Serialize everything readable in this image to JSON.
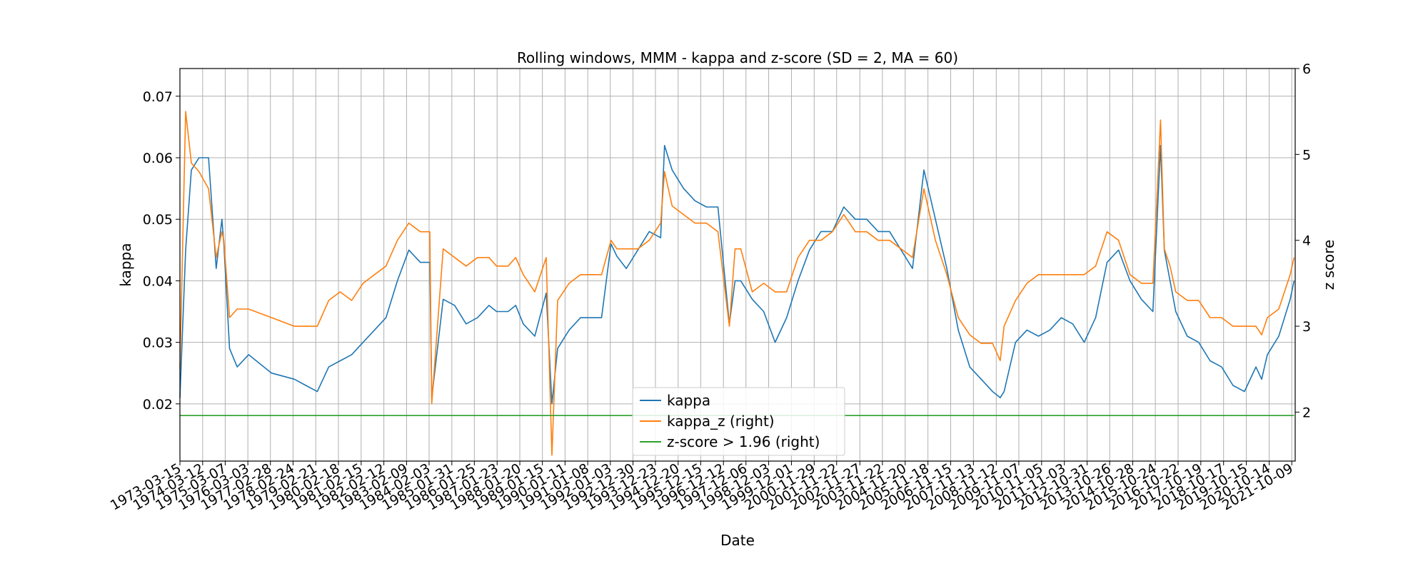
{
  "chart_data": {
    "type": "line",
    "title": "Rolling windows, MMM - kappa and z-score (SD = 2, MA = 60)",
    "xlabel": "Date",
    "ylabel": "kappa",
    "ylabel_right": "z score",
    "ylim": [
      0.0107,
      0.0745
    ],
    "ylim_right": [
      1.43,
      6.0
    ],
    "y_ticks": [
      "0.02",
      "0.03",
      "0.04",
      "0.05",
      "0.06",
      "0.07"
    ],
    "y_ticks_right": [
      "2",
      "3",
      "4",
      "5",
      "6"
    ],
    "x_ticks": [
      "1973-03-15",
      "1974-03-12",
      "1975-03-07",
      "1976-03-03",
      "1977-02-28",
      "1978-02-24",
      "1979-02-21",
      "1980-02-18",
      "1981-02-15",
      "1982-02-12",
      "1983-02-09",
      "1984-02-03",
      "1985-01-31",
      "1986-01-25",
      "1987-01-23",
      "1988-01-20",
      "1989-01-15",
      "1990-01-11",
      "1991-01-08",
      "1992-01-03",
      "1992-12-30",
      "1993-12-23",
      "1994-12-20",
      "1995-12-15",
      "1996-12-12",
      "1997-12-06",
      "1998-12-03",
      "1999-12-01",
      "2000-11-29",
      "2001-11-22",
      "2002-11-27",
      "2003-11-22",
      "2004-11-20",
      "2005-11-18",
      "2006-11-15",
      "2007-11-13",
      "2008-11-12",
      "2009-11-07",
      "2010-11-05",
      "2011-11-03",
      "2012-10-31",
      "2013-10-26",
      "2014-10-28",
      "2015-10-24",
      "2016-10-22",
      "2017-10-19",
      "2018-10-17",
      "2019-10-15",
      "2020-10-14",
      "2021-10-09"
    ],
    "grid": true,
    "legend_position": "lower-center",
    "series": [
      {
        "name": "kappa",
        "axis": "left",
        "color": "#1f77b4",
        "x": [
          "1973-03-15",
          "1973-06",
          "1973-09",
          "1974-01",
          "1974-06",
          "1974-10",
          "1975-01",
          "1975-02",
          "1975-05",
          "1975-09",
          "1976-03",
          "1977-03",
          "1978-03",
          "1978-09",
          "1979-03",
          "1979-09",
          "1980-03",
          "1980-09",
          "1981-03",
          "1981-09",
          "1982-03",
          "1982-09",
          "1983-03",
          "1983-09",
          "1984-02",
          "1984-03",
          "1984-09",
          "1985-03",
          "1985-09",
          "1986-03",
          "1986-09",
          "1987-01",
          "1987-07",
          "1987-11",
          "1988-03",
          "1988-09",
          "1989-03",
          "1989-06",
          "1989-09",
          "1990-03",
          "1990-09",
          "1991-03",
          "1991-08",
          "1992-01",
          "1992-04",
          "1992-09",
          "1993-03",
          "1993-09",
          "1994-03",
          "1994-05",
          "1994-09",
          "1995-03",
          "1995-09",
          "1996-03",
          "1996-09",
          "1997-03",
          "1997-06",
          "1997-09",
          "1998-03",
          "1998-09",
          "1999-03",
          "1999-09",
          "2000-03",
          "2000-09",
          "2001-03",
          "2001-09",
          "2002-03",
          "2002-09",
          "2003-03",
          "2003-09",
          "2004-03",
          "2004-09",
          "2005-03",
          "2005-09",
          "2006-03",
          "2006-09",
          "2007-03",
          "2007-09",
          "2008-03",
          "2008-09",
          "2009-01",
          "2009-03",
          "2009-09",
          "2010-03",
          "2010-09",
          "2011-03",
          "2011-09",
          "2012-03",
          "2012-09",
          "2013-03",
          "2013-09",
          "2014-03",
          "2014-09",
          "2015-03",
          "2015-09",
          "2016-01",
          "2016-03",
          "2016-06",
          "2016-09",
          "2017-03",
          "2017-09",
          "2018-03",
          "2018-09",
          "2019-03",
          "2019-09",
          "2020-03",
          "2020-06",
          "2020-09",
          "2021-03",
          "2021-09",
          "2021-11"
        ],
        "values": [
          0.021,
          0.045,
          0.058,
          0.06,
          0.06,
          0.042,
          0.05,
          0.046,
          0.029,
          0.026,
          0.028,
          0.025,
          0.024,
          0.023,
          0.022,
          0.026,
          0.027,
          0.028,
          0.03,
          0.032,
          0.034,
          0.04,
          0.045,
          0.043,
          0.043,
          0.021,
          0.037,
          0.036,
          0.033,
          0.034,
          0.036,
          0.035,
          0.035,
          0.036,
          0.033,
          0.031,
          0.038,
          0.02,
          0.029,
          0.032,
          0.034,
          0.034,
          0.034,
          0.046,
          0.044,
          0.042,
          0.045,
          0.048,
          0.047,
          0.062,
          0.058,
          0.055,
          0.053,
          0.052,
          0.052,
          0.033,
          0.04,
          0.04,
          0.037,
          0.035,
          0.03,
          0.034,
          0.04,
          0.045,
          0.048,
          0.048,
          0.052,
          0.05,
          0.05,
          0.048,
          0.048,
          0.045,
          0.042,
          0.058,
          0.05,
          0.042,
          0.032,
          0.026,
          0.024,
          0.022,
          0.021,
          0.022,
          0.03,
          0.032,
          0.031,
          0.032,
          0.034,
          0.033,
          0.03,
          0.034,
          0.043,
          0.045,
          0.04,
          0.037,
          0.035,
          0.062,
          0.045,
          0.04,
          0.035,
          0.031,
          0.03,
          0.027,
          0.026,
          0.023,
          0.022,
          0.026,
          0.024,
          0.028,
          0.031,
          0.037,
          0.04
        ]
      },
      {
        "name": "kappa_z (right)",
        "axis": "right",
        "color": "#ff7f0e",
        "x": [
          "1973-03-15",
          "1973-06",
          "1973-09",
          "1974-01",
          "1974-06",
          "1974-10",
          "1975-01",
          "1975-02",
          "1975-05",
          "1975-09",
          "1976-03",
          "1977-03",
          "1978-03",
          "1978-09",
          "1979-03",
          "1979-09",
          "1980-03",
          "1980-09",
          "1981-03",
          "1981-09",
          "1982-03",
          "1982-09",
          "1983-03",
          "1983-09",
          "1984-02",
          "1984-03",
          "1984-09",
          "1985-03",
          "1985-09",
          "1986-03",
          "1986-09",
          "1987-01",
          "1987-07",
          "1987-11",
          "1988-03",
          "1988-09",
          "1989-03",
          "1989-06",
          "1989-09",
          "1990-03",
          "1990-09",
          "1991-03",
          "1991-08",
          "1992-01",
          "1992-04",
          "1992-09",
          "1993-03",
          "1993-09",
          "1994-03",
          "1994-05",
          "1994-09",
          "1995-03",
          "1995-09",
          "1996-03",
          "1996-09",
          "1997-03",
          "1997-06",
          "1997-09",
          "1998-03",
          "1998-09",
          "1999-03",
          "1999-09",
          "2000-03",
          "2000-09",
          "2001-03",
          "2001-09",
          "2002-03",
          "2002-09",
          "2003-03",
          "2003-09",
          "2004-03",
          "2004-09",
          "2005-03",
          "2005-09",
          "2006-03",
          "2006-09",
          "2007-03",
          "2007-09",
          "2008-03",
          "2008-09",
          "2009-01",
          "2009-03",
          "2009-09",
          "2010-03",
          "2010-09",
          "2011-03",
          "2011-09",
          "2012-03",
          "2012-09",
          "2013-03",
          "2013-09",
          "2014-03",
          "2014-09",
          "2015-03",
          "2015-09",
          "2016-01",
          "2016-03",
          "2016-06",
          "2016-09",
          "2017-03",
          "2017-09",
          "2018-03",
          "2018-09",
          "2019-03",
          "2019-09",
          "2020-03",
          "2020-06",
          "2020-09",
          "2021-03",
          "2021-09",
          "2021-11"
        ],
        "values": [
          2.5,
          5.5,
          4.9,
          4.8,
          4.6,
          3.8,
          4.1,
          4.0,
          3.1,
          3.2,
          3.2,
          3.1,
          3.0,
          3.0,
          3.0,
          3.3,
          3.4,
          3.3,
          3.5,
          3.6,
          3.7,
          4.0,
          4.2,
          4.1,
          4.1,
          2.1,
          3.9,
          3.8,
          3.7,
          3.8,
          3.8,
          3.7,
          3.7,
          3.8,
          3.6,
          3.4,
          3.8,
          1.5,
          3.3,
          3.5,
          3.6,
          3.6,
          3.6,
          4.0,
          3.9,
          3.9,
          3.9,
          4.0,
          4.2,
          4.8,
          4.4,
          4.3,
          4.2,
          4.2,
          4.1,
          3.0,
          3.9,
          3.9,
          3.4,
          3.5,
          3.4,
          3.4,
          3.8,
          4.0,
          4.0,
          4.1,
          4.3,
          4.1,
          4.1,
          4.0,
          4.0,
          3.9,
          3.8,
          4.6,
          4.0,
          3.6,
          3.1,
          2.9,
          2.8,
          2.8,
          2.6,
          3.0,
          3.3,
          3.5,
          3.6,
          3.6,
          3.6,
          3.6,
          3.6,
          3.7,
          4.1,
          4.0,
          3.6,
          3.5,
          3.5,
          5.4,
          3.9,
          3.7,
          3.4,
          3.3,
          3.3,
          3.1,
          3.1,
          3.0,
          3.0,
          3.0,
          2.9,
          3.1,
          3.2,
          3.6,
          3.8
        ]
      },
      {
        "name": "z-score > 1.96 (right)",
        "axis": "right",
        "color": "#2ca02c",
        "x": [
          "1973-03-15",
          "2021-11"
        ],
        "values": [
          1.96,
          1.96
        ]
      }
    ]
  }
}
